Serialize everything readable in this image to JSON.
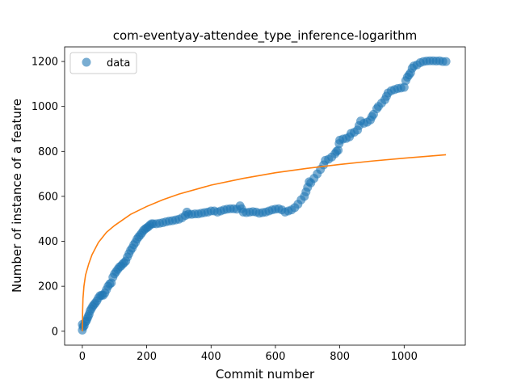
{
  "chart_data": {
    "type": "scatter",
    "title": "com-eventyay-attendee_type_inference-logarithm",
    "xlabel": "Commit number",
    "ylabel": "Number of instance of a feature",
    "xlim": [
      -55,
      1190
    ],
    "ylim": [
      -62,
      1265
    ],
    "xticks": [
      0,
      200,
      400,
      600,
      800,
      1000
    ],
    "yticks": [
      0,
      200,
      400,
      600,
      800,
      1000,
      1200
    ],
    "legend": {
      "position": "top-left",
      "entries": [
        "data"
      ]
    },
    "series": [
      {
        "name": "data",
        "kind": "scatter",
        "color": "#1f77b4",
        "points": [
          [
            0,
            5
          ],
          [
            0,
            30
          ],
          [
            3,
            20
          ],
          [
            6,
            25
          ],
          [
            9,
            40
          ],
          [
            12,
            45
          ],
          [
            15,
            55
          ],
          [
            18,
            65
          ],
          [
            21,
            75
          ],
          [
            24,
            90
          ],
          [
            28,
            100
          ],
          [
            32,
            110
          ],
          [
            36,
            118
          ],
          [
            40,
            125
          ],
          [
            45,
            135
          ],
          [
            50,
            148
          ],
          [
            55,
            158
          ],
          [
            60,
            160
          ],
          [
            65,
            160
          ],
          [
            70,
            170
          ],
          [
            75,
            185
          ],
          [
            80,
            200
          ],
          [
            85,
            210
          ],
          [
            90,
            215
          ],
          [
            95,
            240
          ],
          [
            100,
            255
          ],
          [
            105,
            265
          ],
          [
            110,
            275
          ],
          [
            115,
            285
          ],
          [
            120,
            290
          ],
          [
            125,
            298
          ],
          [
            130,
            305
          ],
          [
            135,
            312
          ],
          [
            140,
            330
          ],
          [
            145,
            345
          ],
          [
            150,
            360
          ],
          [
            155,
            370
          ],
          [
            160,
            385
          ],
          [
            165,
            395
          ],
          [
            170,
            410
          ],
          [
            175,
            420
          ],
          [
            180,
            428
          ],
          [
            185,
            438
          ],
          [
            190,
            448
          ],
          [
            195,
            455
          ],
          [
            200,
            460
          ],
          [
            205,
            465
          ],
          [
            210,
            472
          ],
          [
            215,
            478
          ],
          [
            220,
            478
          ],
          [
            230,
            478
          ],
          [
            240,
            480
          ],
          [
            250,
            483
          ],
          [
            260,
            487
          ],
          [
            270,
            490
          ],
          [
            280,
            492
          ],
          [
            290,
            495
          ],
          [
            300,
            498
          ],
          [
            310,
            505
          ],
          [
            320,
            515
          ],
          [
            325,
            530
          ],
          [
            330,
            520
          ],
          [
            340,
            520
          ],
          [
            350,
            522
          ],
          [
            360,
            522
          ],
          [
            370,
            525
          ],
          [
            380,
            528
          ],
          [
            390,
            530
          ],
          [
            400,
            535
          ],
          [
            410,
            535
          ],
          [
            420,
            530
          ],
          [
            430,
            535
          ],
          [
            440,
            540
          ],
          [
            450,
            543
          ],
          [
            460,
            545
          ],
          [
            470,
            545
          ],
          [
            480,
            543
          ],
          [
            490,
            558
          ],
          [
            495,
            545
          ],
          [
            500,
            530
          ],
          [
            510,
            528
          ],
          [
            520,
            530
          ],
          [
            530,
            532
          ],
          [
            540,
            530
          ],
          [
            550,
            525
          ],
          [
            560,
            528
          ],
          [
            570,
            530
          ],
          [
            580,
            535
          ],
          [
            590,
            540
          ],
          [
            600,
            543
          ],
          [
            610,
            545
          ],
          [
            620,
            540
          ],
          [
            630,
            530
          ],
          [
            640,
            535
          ],
          [
            650,
            540
          ],
          [
            660,
            550
          ],
          [
            670,
            565
          ],
          [
            680,
            585
          ],
          [
            690,
            600
          ],
          [
            695,
            620
          ],
          [
            700,
            640
          ],
          [
            705,
            665
          ],
          [
            710,
            660
          ],
          [
            720,
            680
          ],
          [
            730,
            700
          ],
          [
            740,
            720
          ],
          [
            750,
            740
          ],
          [
            755,
            760
          ],
          [
            765,
            765
          ],
          [
            775,
            775
          ],
          [
            785,
            790
          ],
          [
            790,
            800
          ],
          [
            795,
            805
          ],
          [
            798,
            835
          ],
          [
            800,
            850
          ],
          [
            810,
            855
          ],
          [
            820,
            858
          ],
          [
            830,
            865
          ],
          [
            835,
            880
          ],
          [
            845,
            885
          ],
          [
            855,
            895
          ],
          [
            860,
            915
          ],
          [
            865,
            935
          ],
          [
            875,
            925
          ],
          [
            885,
            930
          ],
          [
            895,
            940
          ],
          [
            900,
            955
          ],
          [
            905,
            965
          ],
          [
            915,
            990
          ],
          [
            920,
            1000
          ],
          [
            930,
            1015
          ],
          [
            940,
            1030
          ],
          [
            945,
            1045
          ],
          [
            950,
            1060
          ],
          [
            960,
            1070
          ],
          [
            970,
            1075
          ],
          [
            980,
            1080
          ],
          [
            990,
            1082
          ],
          [
            1000,
            1085
          ],
          [
            1005,
            1115
          ],
          [
            1010,
            1130
          ],
          [
            1015,
            1140
          ],
          [
            1020,
            1150
          ],
          [
            1025,
            1170
          ],
          [
            1030,
            1180
          ],
          [
            1040,
            1185
          ],
          [
            1050,
            1195
          ],
          [
            1060,
            1200
          ],
          [
            1070,
            1202
          ],
          [
            1080,
            1203
          ],
          [
            1090,
            1203
          ],
          [
            1100,
            1202
          ],
          [
            1110,
            1203
          ],
          [
            1120,
            1200
          ],
          [
            1130,
            1200
          ]
        ]
      },
      {
        "name": "",
        "kind": "line",
        "color": "#ff7f0e",
        "points": [
          [
            0,
            0
          ],
          [
            1,
            95
          ],
          [
            2,
            145
          ],
          [
            5,
            200
          ],
          [
            10,
            250
          ],
          [
            20,
            300
          ],
          [
            30,
            340
          ],
          [
            50,
            395
          ],
          [
            75,
            440
          ],
          [
            100,
            470
          ],
          [
            150,
            520
          ],
          [
            200,
            555
          ],
          [
            250,
            585
          ],
          [
            300,
            610
          ],
          [
            400,
            650
          ],
          [
            500,
            680
          ],
          [
            600,
            705
          ],
          [
            700,
            725
          ],
          [
            800,
            742
          ],
          [
            900,
            757
          ],
          [
            1000,
            770
          ],
          [
            1130,
            785
          ]
        ]
      }
    ]
  }
}
